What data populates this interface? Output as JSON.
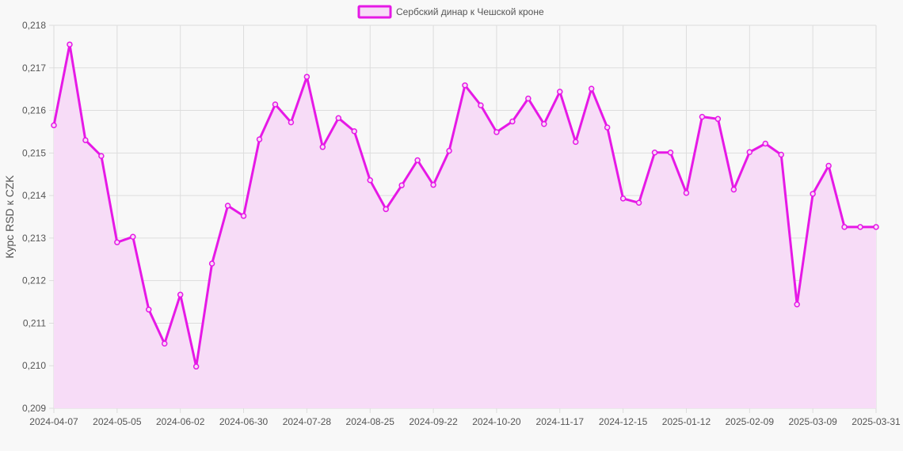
{
  "chart_data": {
    "type": "area",
    "ylabel": "Курс RSD к CZK",
    "ylim": [
      0.209,
      0.218
    ],
    "yticks": [
      "0,209",
      "0,210",
      "0,211",
      "0,212",
      "0,213",
      "0,214",
      "0,215",
      "0,216",
      "0,217",
      "0,218"
    ],
    "xticks": [
      "2024-04-07",
      "2024-05-05",
      "2024-06-02",
      "2024-06-30",
      "2024-07-28",
      "2024-08-25",
      "2024-09-22",
      "2024-10-20",
      "2024-11-17",
      "2024-12-15",
      "2025-01-12",
      "2025-02-09",
      "2025-03-09",
      "2025-03-31"
    ],
    "grid": true,
    "legend_position": "top",
    "series": [
      {
        "name": "Сербский динар к Чешской кроне",
        "color": "#e619e6",
        "fill": "#f7dcf7",
        "values": [
          0.21565,
          0.21755,
          0.2153,
          0.21493,
          0.2129,
          0.21303,
          0.21132,
          0.21052,
          0.21167,
          0.20998,
          0.2124,
          0.21376,
          0.21352,
          0.21532,
          0.21614,
          0.21572,
          0.21679,
          0.21514,
          0.21582,
          0.21551,
          0.21436,
          0.21368,
          0.21424,
          0.21483,
          0.21425,
          0.21505,
          0.21659,
          0.21612,
          0.21549,
          0.21574,
          0.21628,
          0.21568,
          0.21644,
          0.21526,
          0.21651,
          0.2156,
          0.21393,
          0.21383,
          0.21501,
          0.21501,
          0.21406,
          0.21585,
          0.2158,
          0.21414,
          0.21502,
          0.21522,
          0.21496,
          0.21144,
          0.21404,
          0.2147,
          0.21326,
          0.21326,
          0.21326
        ]
      }
    ]
  }
}
